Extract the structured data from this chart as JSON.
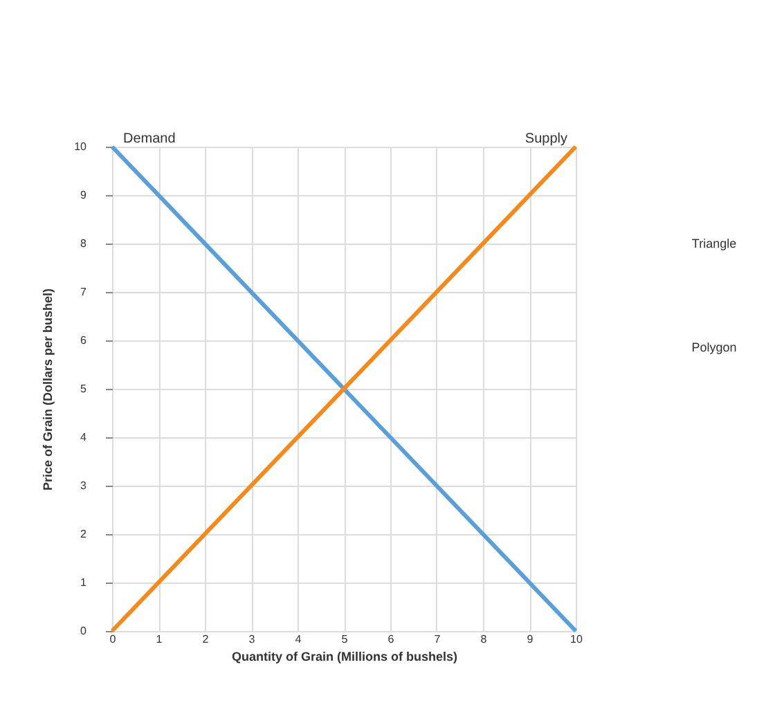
{
  "chart_data": {
    "type": "line",
    "xlabel": "Quantity of Grain (Millions of bushels)",
    "ylabel": "Price of Grain (Dollars per bushel)",
    "x": [
      0,
      10
    ],
    "series": [
      {
        "name": "Demand",
        "color": "#5b9fd8",
        "values": [
          10,
          0
        ]
      },
      {
        "name": "Supply",
        "color": "#f28a1e",
        "values": [
          0,
          10
        ]
      }
    ],
    "xlim": [
      0,
      10
    ],
    "ylim": [
      0,
      10
    ],
    "xticks": [
      0,
      1,
      2,
      3,
      4,
      5,
      6,
      7,
      8,
      9,
      10
    ],
    "yticks": [
      0,
      1,
      2,
      3,
      4,
      5,
      6,
      7,
      8,
      9,
      10
    ],
    "grid": true,
    "legend": false,
    "marker": "none",
    "line_style": "solid",
    "annotations": [
      "Triangle",
      "Polygon"
    ]
  }
}
